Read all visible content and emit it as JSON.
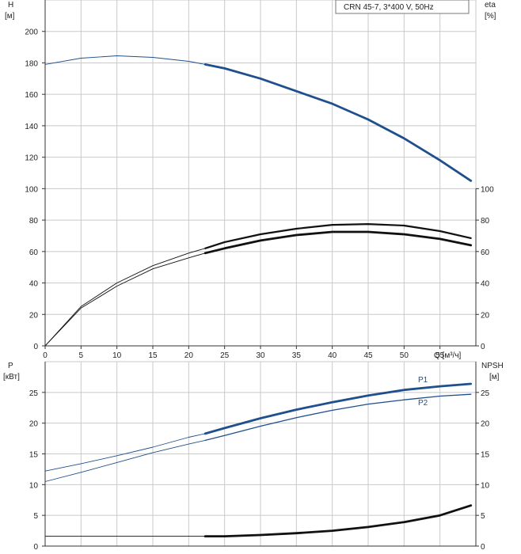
{
  "chart_data": [
    {
      "type": "line",
      "title": "CRN 45-7, 3*400 V, 50Hz",
      "xlabel": "Q [м³/ч]",
      "ylabel": "H\n[м]",
      "y2label": "eta\n[%]",
      "xlim": [
        0,
        60
      ],
      "ylim": [
        0,
        220
      ],
      "xticks": [
        0,
        5,
        10,
        15,
        20,
        25,
        30,
        35,
        40,
        45,
        50,
        55
      ],
      "yticks": [
        0,
        20,
        40,
        60,
        80,
        100,
        120,
        140,
        160,
        180,
        200
      ],
      "y2ticks": [
        0,
        20,
        40,
        60,
        80,
        100
      ],
      "grid": true,
      "series": [
        {
          "name": "",
          "color": "#1f4f8c",
          "x": [
            0,
            5,
            10,
            15,
            20,
            22.3
          ],
          "y": [
            179,
            183,
            184.5,
            183.5,
            181,
            179
          ],
          "style": "thin"
        },
        {
          "name": "",
          "color": "#1f4f8c",
          "x": [
            22.3,
            25,
            30,
            35,
            40,
            45,
            50,
            55,
            59.3
          ],
          "y": [
            179,
            176.5,
            170,
            162,
            154,
            144,
            132,
            118,
            105
          ],
          "style": "thick"
        },
        {
          "name": "",
          "color": "#111111",
          "x": [
            0,
            5,
            10,
            15,
            20,
            22.3
          ],
          "y": [
            0,
            25,
            40,
            51,
            59,
            62
          ],
          "style": "thin"
        },
        {
          "name": "",
          "color": "#111111",
          "x": [
            22.3,
            25,
            30,
            35,
            40,
            45,
            50,
            55,
            59.3
          ],
          "y": [
            62,
            66,
            71,
            74.5,
            77,
            77.5,
            76.5,
            73,
            68.5
          ],
          "style": "thick-mid"
        },
        {
          "name": "",
          "color": "#111111",
          "x": [
            0,
            5,
            10,
            15,
            20,
            22.3
          ],
          "y": [
            0,
            24,
            38,
            49,
            56,
            59
          ],
          "style": "thin"
        },
        {
          "name": "",
          "color": "#111111",
          "x": [
            22.3,
            25,
            30,
            35,
            40,
            45,
            50,
            55,
            59.3
          ],
          "y": [
            59,
            62,
            67,
            70.5,
            72.5,
            72.5,
            71,
            68,
            64
          ],
          "style": "thick"
        }
      ]
    },
    {
      "type": "line",
      "xlabel": "",
      "ylabel": "P\n[кВт]",
      "y2label": "NPSH\n[м]",
      "xlim": [
        0,
        60
      ],
      "ylim": [
        0,
        30
      ],
      "yticks": [
        0,
        5,
        10,
        15,
        20,
        25
      ],
      "y2ticks": [
        0,
        5,
        10,
        15,
        20,
        25
      ],
      "grid": true,
      "series": [
        {
          "name": "P1",
          "color": "#1f4f8c",
          "x": [
            0,
            5,
            10,
            15,
            20,
            22.3
          ],
          "y": [
            12.2,
            13.4,
            14.7,
            16.1,
            17.7,
            18.3
          ],
          "style": "thin"
        },
        {
          "name": "P1",
          "color": "#1f4f8c",
          "x": [
            22.3,
            25,
            30,
            35,
            40,
            45,
            50,
            55,
            59.3
          ],
          "y": [
            18.3,
            19.2,
            20.8,
            22.2,
            23.4,
            24.5,
            25.4,
            26.0,
            26.4
          ],
          "style": "thick"
        },
        {
          "name": "P2",
          "color": "#1f4f8c",
          "x": [
            0,
            5,
            10,
            15,
            20,
            22.3
          ],
          "y": [
            10.5,
            12.0,
            13.6,
            15.2,
            16.6,
            17.2
          ],
          "style": "thin"
        },
        {
          "name": "P2",
          "color": "#1f4f8c",
          "x": [
            22.3,
            25,
            30,
            35,
            40,
            45,
            50,
            55,
            59.3
          ],
          "y": [
            17.2,
            18.0,
            19.5,
            20.9,
            22.1,
            23.1,
            23.8,
            24.4,
            24.7
          ],
          "style": "medium"
        },
        {
          "name": "",
          "color": "#111111",
          "x": [
            0,
            5,
            10,
            15,
            20,
            22.3
          ],
          "y": [
            1.6,
            1.6,
            1.6,
            1.6,
            1.6,
            1.6
          ],
          "style": "thin"
        },
        {
          "name": "",
          "color": "#111111",
          "x": [
            22.3,
            25,
            30,
            35,
            40,
            45,
            50,
            55,
            59.3
          ],
          "y": [
            1.6,
            1.6,
            1.8,
            2.1,
            2.5,
            3.1,
            3.9,
            5.0,
            6.6
          ],
          "style": "thick"
        }
      ]
    }
  ]
}
